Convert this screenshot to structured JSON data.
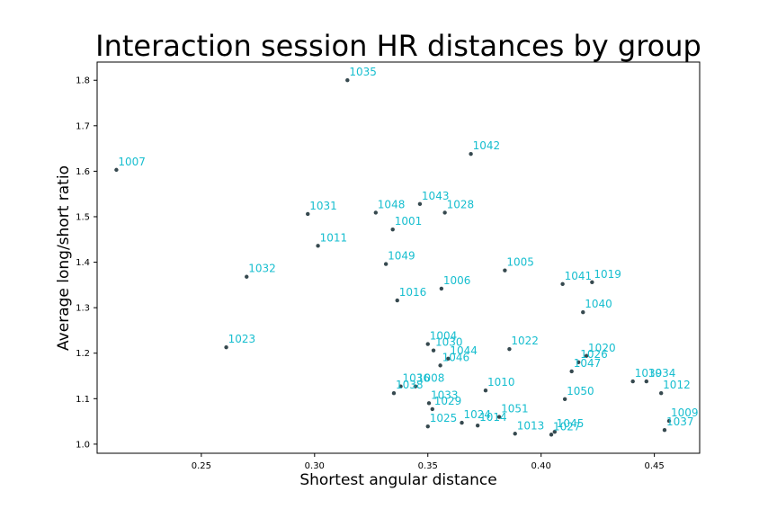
{
  "chart_data": {
    "type": "scatter",
    "title": "Interaction session HR distances by group",
    "xlabel": "Shortest angular distance",
    "ylabel": "Average long/short ratio",
    "xlim": [
      0.204,
      0.47
    ],
    "ylim": [
      0.98,
      1.84
    ],
    "xticks": [
      0.25,
      0.3,
      0.35,
      0.4,
      0.45
    ],
    "xtick_labels": [
      "0.25",
      "0.30",
      "0.35",
      "0.40",
      "0.45"
    ],
    "yticks": [
      1.0,
      1.1,
      1.2,
      1.3,
      1.4,
      1.5,
      1.6,
      1.7,
      1.8
    ],
    "ytick_labels": [
      "1.0",
      "1.1",
      "1.2",
      "1.3",
      "1.4",
      "1.5",
      "1.6",
      "1.7",
      "1.8"
    ],
    "grid": false,
    "point_color": "#36494f",
    "label_color": "#17becf",
    "points": [
      {
        "label": "1035",
        "x": 0.3145,
        "y": 1.8
      },
      {
        "label": "1042",
        "x": 0.369,
        "y": 1.638
      },
      {
        "label": "1007",
        "x": 0.2125,
        "y": 1.603
      },
      {
        "label": "1043",
        "x": 0.3465,
        "y": 1.528
      },
      {
        "label": "1031",
        "x": 0.297,
        "y": 1.506
      },
      {
        "label": "1048",
        "x": 0.327,
        "y": 1.509
      },
      {
        "label": "1028",
        "x": 0.3575,
        "y": 1.509
      },
      {
        "label": "1001",
        "x": 0.3345,
        "y": 1.472
      },
      {
        "label": "1011",
        "x": 0.3015,
        "y": 1.436
      },
      {
        "label": "1049",
        "x": 0.3315,
        "y": 1.396
      },
      {
        "label": "1005",
        "x": 0.384,
        "y": 1.382
      },
      {
        "label": "1032",
        "x": 0.27,
        "y": 1.368
      },
      {
        "label": "1041",
        "x": 0.4095,
        "y": 1.352
      },
      {
        "label": "1019",
        "x": 0.4225,
        "y": 1.356
      },
      {
        "label": "1006",
        "x": 0.356,
        "y": 1.342
      },
      {
        "label": "1016",
        "x": 0.3365,
        "y": 1.316
      },
      {
        "label": "1040",
        "x": 0.4185,
        "y": 1.29
      },
      {
        "label": "1004",
        "x": 0.35,
        "y": 1.22
      },
      {
        "label": "1030",
        "x": 0.3525,
        "y": 1.206
      },
      {
        "label": "1023",
        "x": 0.261,
        "y": 1.213
      },
      {
        "label": "1022",
        "x": 0.386,
        "y": 1.209
      },
      {
        "label": "1044",
        "x": 0.359,
        "y": 1.188
      },
      {
        "label": "1020",
        "x": 0.42,
        "y": 1.194
      },
      {
        "label": "1026",
        "x": 0.4165,
        "y": 1.18
      },
      {
        "label": "1046",
        "x": 0.3555,
        "y": 1.173
      },
      {
        "label": "1047",
        "x": 0.4135,
        "y": 1.16
      },
      {
        "label": "1039",
        "x": 0.4405,
        "y": 1.138
      },
      {
        "label": "1034",
        "x": 0.4465,
        "y": 1.138
      },
      {
        "label": "1036",
        "x": 0.338,
        "y": 1.127
      },
      {
        "label": "1008",
        "x": 0.3445,
        "y": 1.127
      },
      {
        "label": "1038",
        "x": 0.335,
        "y": 1.112
      },
      {
        "label": "1012",
        "x": 0.453,
        "y": 1.112
      },
      {
        "label": "1010",
        "x": 0.3755,
        "y": 1.118
      },
      {
        "label": "1050",
        "x": 0.4105,
        "y": 1.099
      },
      {
        "label": "1033",
        "x": 0.3505,
        "y": 1.09
      },
      {
        "label": "1029",
        "x": 0.352,
        "y": 1.077
      },
      {
        "label": "1051",
        "x": 0.3815,
        "y": 1.06
      },
      {
        "label": "1009",
        "x": 0.4565,
        "y": 1.051
      },
      {
        "label": "1024",
        "x": 0.365,
        "y": 1.047
      },
      {
        "label": "1014",
        "x": 0.372,
        "y": 1.041
      },
      {
        "label": "1025",
        "x": 0.35,
        "y": 1.039
      },
      {
        "label": "1037",
        "x": 0.4545,
        "y": 1.031
      },
      {
        "label": "1045",
        "x": 0.406,
        "y": 1.027
      },
      {
        "label": "1013",
        "x": 0.3885,
        "y": 1.023
      },
      {
        "label": "1027",
        "x": 0.4045,
        "y": 1.021
      }
    ]
  }
}
